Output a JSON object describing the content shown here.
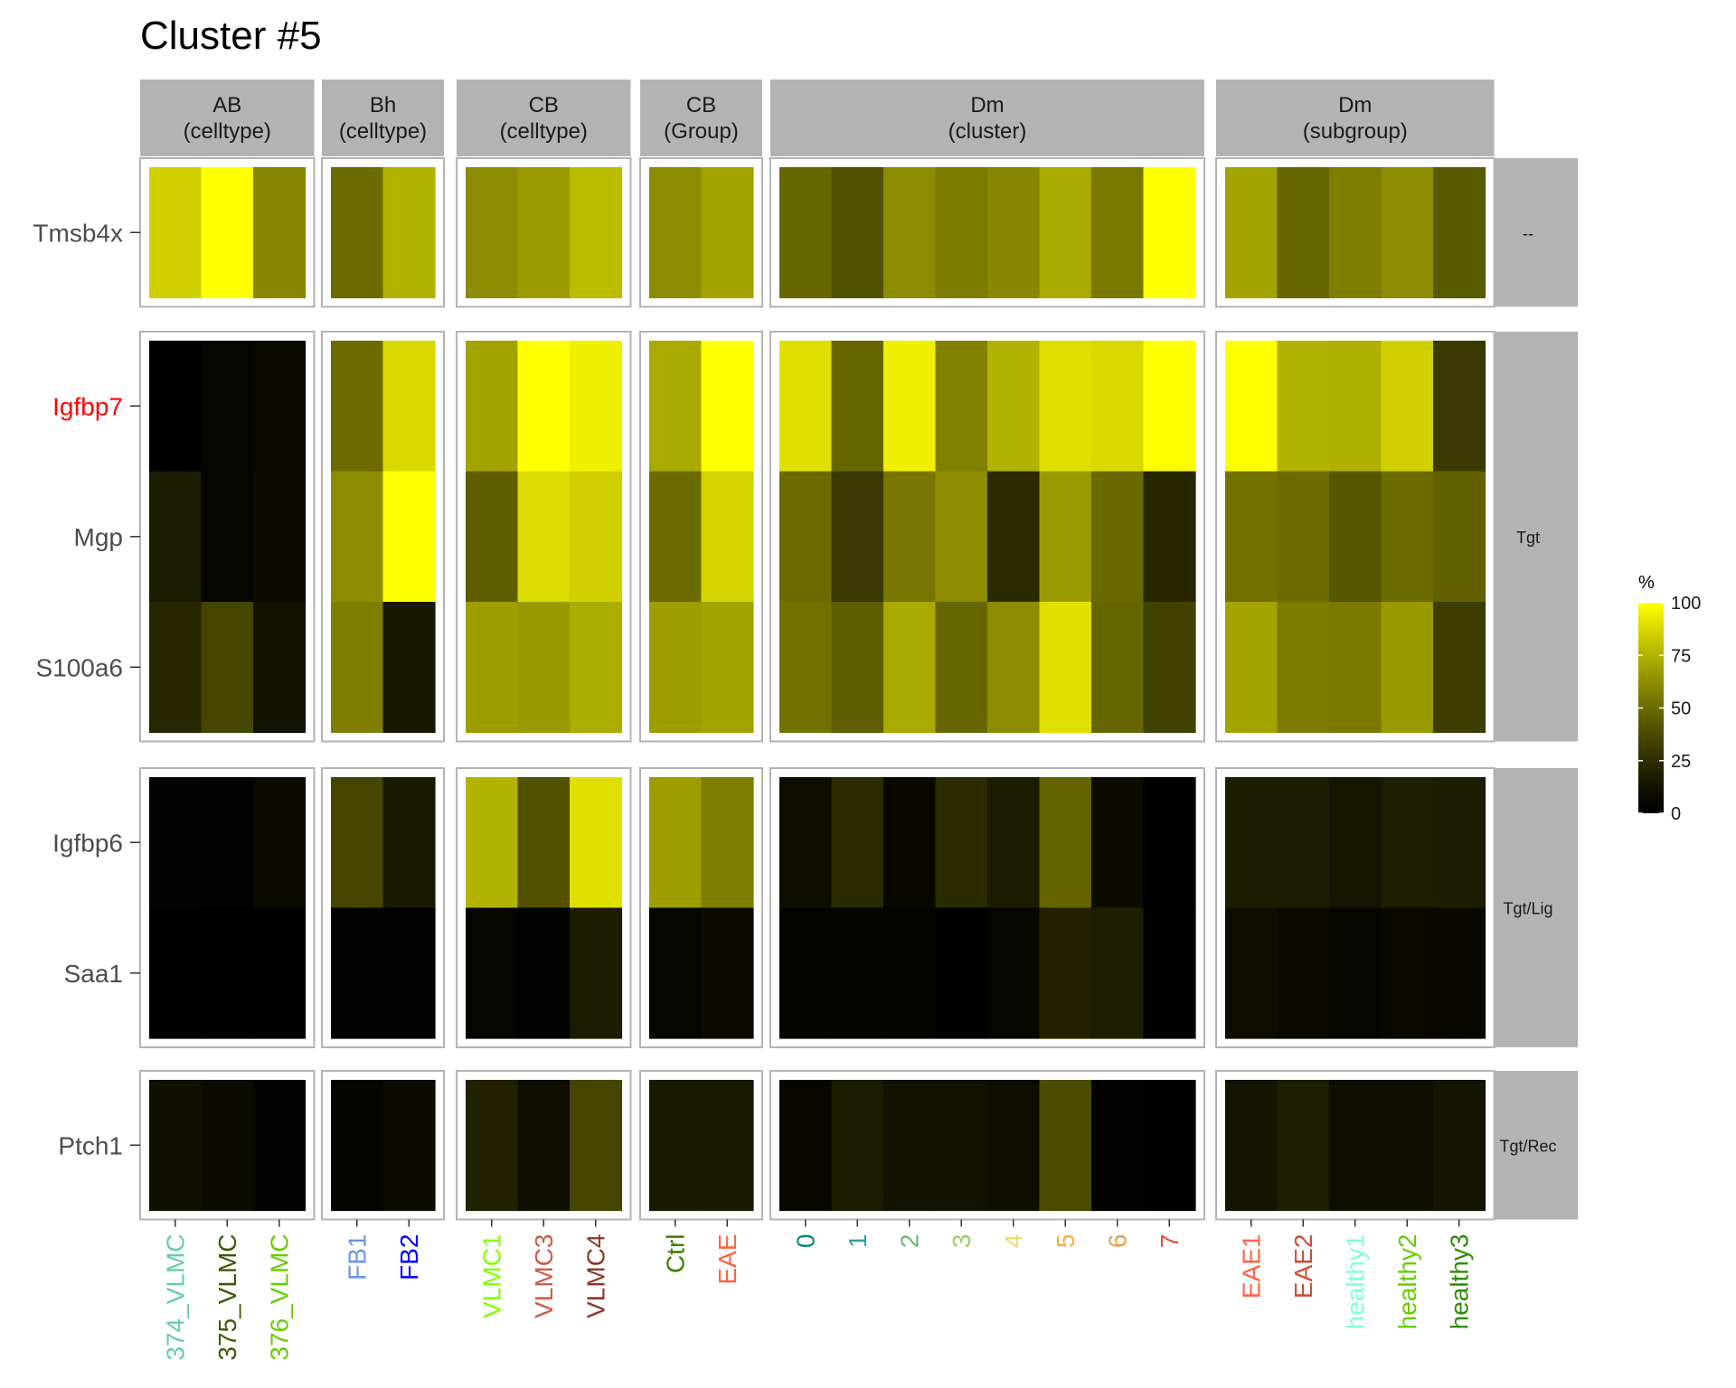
{
  "chart_data": {
    "type": "heatmap",
    "title": "Cluster #5",
    "legend": {
      "title": "%",
      "ticks": [
        0,
        25,
        50,
        75,
        100
      ],
      "range": [
        0,
        100
      ],
      "low_color": "#000000",
      "high_color": "#ffff00",
      "placement": "right"
    },
    "column_facets": [
      {
        "label1": "AB",
        "label2": "(celltype)",
        "columns": [
          {
            "label": "374_VLMC",
            "color": "#66cdaa"
          },
          {
            "label": "375_VLMC",
            "color": "#3a5a00"
          },
          {
            "label": "376_VLMC",
            "color": "#66cd00"
          }
        ]
      },
      {
        "label1": "Bh",
        "label2": "(celltype)",
        "columns": [
          {
            "label": "FB1",
            "color": "#6495ed"
          },
          {
            "label": "FB2",
            "color": "#0000ff"
          }
        ]
      },
      {
        "label1": "CB",
        "label2": "(celltype)",
        "columns": [
          {
            "label": "VLMC1",
            "color": "#7fff00"
          },
          {
            "label": "VLMC3",
            "color": "#cd5c45"
          },
          {
            "label": "VLMC4",
            "color": "#8b3626"
          }
        ]
      },
      {
        "label1": "CB",
        "label2": "(Group)",
        "columns": [
          {
            "label": "Ctrl",
            "color": "#3a7d00"
          },
          {
            "label": "EAE",
            "color": "#ff6347"
          }
        ]
      },
      {
        "label1": "Dm",
        "label2": "(cluster)",
        "columns": [
          {
            "label": "0",
            "color": "#00897b"
          },
          {
            "label": "1",
            "color": "#26a69a"
          },
          {
            "label": "2",
            "color": "#66bb6a"
          },
          {
            "label": "3",
            "color": "#9ccc65"
          },
          {
            "label": "4",
            "color": "#f5d76e"
          },
          {
            "label": "5",
            "color": "#f5b041"
          },
          {
            "label": "6",
            "color": "#eb984e"
          },
          {
            "label": "7",
            "color": "#e74c3c"
          }
        ]
      },
      {
        "label1": "Dm",
        "label2": "(subgroup)",
        "columns": [
          {
            "label": "EAE1",
            "color": "#ff6347"
          },
          {
            "label": "EAE2",
            "color": "#cd4f39"
          },
          {
            "label": "healthy1",
            "color": "#7fffd4"
          },
          {
            "label": "healthy2",
            "color": "#66cd00"
          },
          {
            "label": "healthy3",
            "color": "#2e8b00"
          }
        ]
      }
    ],
    "row_facets": [
      {
        "label": "--",
        "genes": [
          {
            "label": "Tmsb4x",
            "color": "#4d4d4d"
          }
        ]
      },
      {
        "label": "Tgt",
        "genes": [
          {
            "label": "Igfbp7",
            "color": "#ff0000"
          },
          {
            "label": "Mgp",
            "color": "#4d4d4d"
          },
          {
            "label": "S100a6",
            "color": "#4d4d4d"
          }
        ]
      },
      {
        "label": "Tgt/Lig",
        "genes": [
          {
            "label": "Igfbp6",
            "color": "#4d4d4d"
          },
          {
            "label": "Saa1",
            "color": "#4d4d4d"
          }
        ]
      },
      {
        "label": "Tgt/Rec",
        "genes": [
          {
            "label": "Ptch1",
            "color": "#4d4d4d"
          }
        ]
      }
    ],
    "values": {
      "Tmsb4x": [
        [
          85,
          100,
          60
        ],
        [
          50,
          75
        ],
        [
          62,
          67,
          78
        ],
        [
          62,
          70
        ],
        [
          48,
          40,
          62,
          56,
          60,
          72,
          55,
          100
        ],
        [
          70,
          48,
          57,
          62,
          43
        ]
      ],
      "Igfbp7": [
        [
          0,
          5,
          7
        ],
        [
          50,
          88
        ],
        [
          70,
          100,
          95
        ],
        [
          72,
          100
        ],
        [
          90,
          48,
          95,
          58,
          75,
          90,
          88,
          100
        ],
        [
          100,
          75,
          74,
          85,
          30
        ]
      ],
      "Mgp": [
        [
          17,
          5,
          8
        ],
        [
          62,
          100
        ],
        [
          45,
          89,
          85
        ],
        [
          50,
          86
        ],
        [
          50,
          30,
          54,
          62,
          24,
          67,
          49,
          22
        ],
        [
          52,
          50,
          42,
          50,
          46
        ]
      ],
      "S100a6": [
        [
          22,
          35,
          12
        ],
        [
          57,
          15
        ],
        [
          68,
          66,
          73
        ],
        [
          68,
          70
        ],
        [
          52,
          45,
          72,
          48,
          62,
          90,
          48,
          34
        ],
        [
          70,
          56,
          55,
          66,
          32
        ]
      ],
      "Igfbp6": [
        [
          3,
          2,
          8
        ],
        [
          35,
          16
        ],
        [
          75,
          40,
          90
        ],
        [
          68,
          57
        ],
        [
          10,
          24,
          6,
          24,
          17,
          47,
          8,
          0
        ],
        [
          17,
          17,
          14,
          18,
          17
        ]
      ],
      "Saa1": [
        [
          0,
          0,
          0
        ],
        [
          2,
          2
        ],
        [
          5,
          3,
          17
        ],
        [
          5,
          8
        ],
        [
          4,
          4,
          4,
          1,
          5,
          20,
          18,
          1
        ],
        [
          9,
          7,
          5,
          7,
          6
        ]
      ],
      "Ptch1": [
        [
          11,
          8,
          3
        ],
        [
          4,
          8
        ],
        [
          20,
          9,
          35
        ],
        [
          16,
          16
        ],
        [
          6,
          17,
          12,
          12,
          9,
          38,
          3,
          1
        ],
        [
          13,
          18,
          9,
          9,
          13
        ]
      ]
    }
  }
}
